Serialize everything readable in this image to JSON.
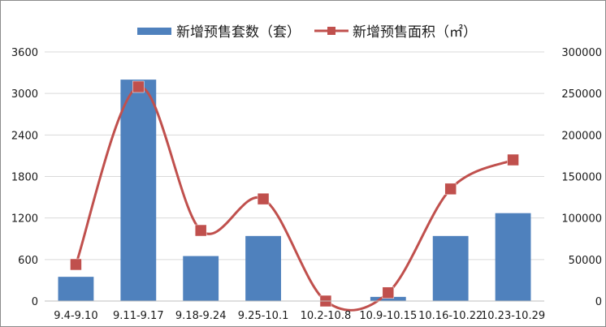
{
  "chart_data": {
    "type": "bar+line",
    "categories": [
      "9.4-9.10",
      "9.11-9.17",
      "9.18-9.24",
      "9.25-10.1",
      "10.2-10.8",
      "10.9-10.15",
      "10.16-10.22",
      "10.23-10.29"
    ],
    "series": [
      {
        "name": "新增预售套数（套）",
        "type": "bar",
        "axis": "left",
        "color": "#4f81bd",
        "values": [
          350,
          3200,
          650,
          940,
          0,
          60,
          940,
          1270
        ]
      },
      {
        "name": "新增预售面积（㎡）",
        "type": "line",
        "axis": "right",
        "color": "#c0504d",
        "values": [
          44000,
          258000,
          85000,
          123000,
          0,
          10000,
          135000,
          170000
        ]
      }
    ],
    "y_left": {
      "ylim": [
        0,
        3600
      ],
      "ticks": [
        "0",
        "600",
        "1200",
        "1800",
        "2400",
        "3000",
        "3600"
      ]
    },
    "y_right": {
      "ylim": [
        0,
        300000
      ],
      "ticks": [
        "0",
        "50000",
        "100000",
        "150000",
        "200000",
        "250000",
        "300000"
      ]
    },
    "grid": true,
    "legend_position": "top"
  }
}
